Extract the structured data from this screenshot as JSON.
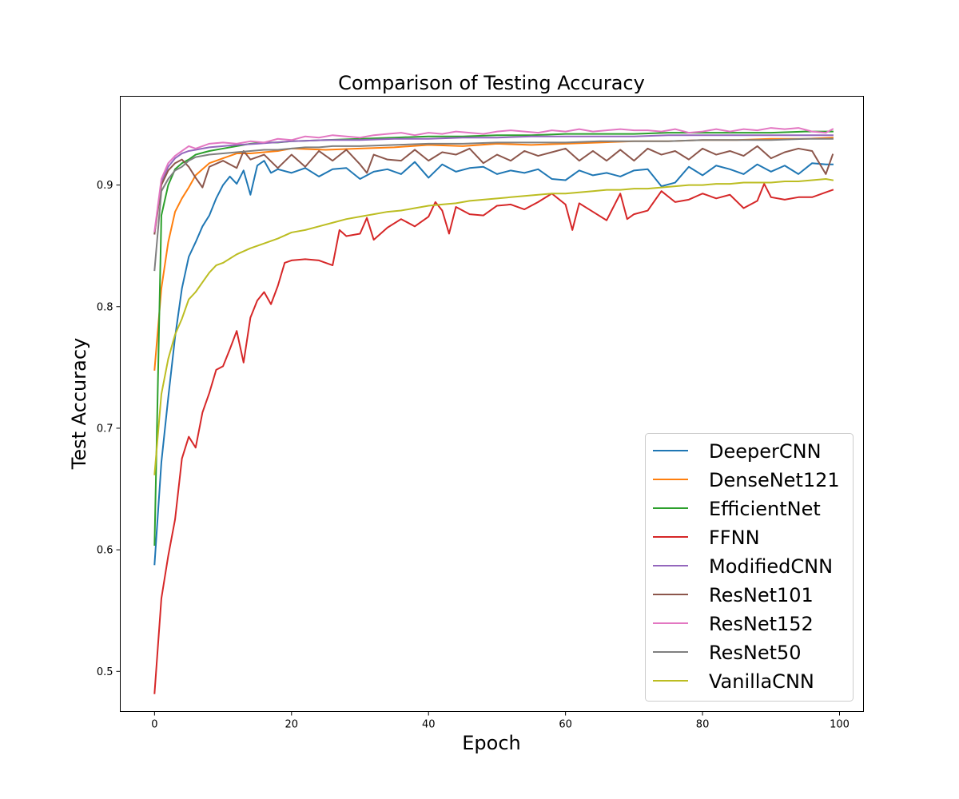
{
  "chart_data": {
    "type": "line",
    "title": "Comparison of Testing Accuracy",
    "xlabel": "Epoch",
    "ylabel": "Test Accuracy",
    "xlim": [
      -5,
      103.5
    ],
    "ylim": [
      0.467,
      0.973
    ],
    "xticks": [
      0,
      20,
      40,
      60,
      80,
      100
    ],
    "yticks": [
      0.5,
      0.6,
      0.7,
      0.8,
      0.9
    ],
    "grid": false,
    "legend_position": "lower-right",
    "series": [
      {
        "name": "DeeperCNN",
        "color": "#1f77b4",
        "x": [
          0,
          1,
          2,
          3,
          4,
          5,
          6,
          7,
          8,
          9,
          10,
          11,
          12,
          13,
          14,
          15,
          16,
          17,
          18,
          20,
          22,
          24,
          26,
          28,
          30,
          32,
          34,
          36,
          38,
          40,
          42,
          44,
          46,
          48,
          50,
          52,
          54,
          56,
          58,
          60,
          62,
          64,
          66,
          68,
          70,
          72,
          74,
          76,
          78,
          80,
          82,
          84,
          86,
          88,
          90,
          92,
          94,
          96,
          98,
          99
        ],
        "values": [
          0.588,
          0.672,
          0.725,
          0.775,
          0.815,
          0.841,
          0.853,
          0.866,
          0.875,
          0.889,
          0.9,
          0.907,
          0.901,
          0.912,
          0.892,
          0.916,
          0.92,
          0.91,
          0.913,
          0.91,
          0.914,
          0.907,
          0.913,
          0.914,
          0.905,
          0.911,
          0.913,
          0.909,
          0.919,
          0.906,
          0.917,
          0.911,
          0.914,
          0.915,
          0.909,
          0.912,
          0.91,
          0.913,
          0.905,
          0.904,
          0.912,
          0.908,
          0.91,
          0.907,
          0.912,
          0.913,
          0.899,
          0.902,
          0.915,
          0.908,
          0.916,
          0.913,
          0.909,
          0.917,
          0.911,
          0.916,
          0.909,
          0.918,
          0.917,
          0.917
        ]
      },
      {
        "name": "DenseNet121",
        "color": "#ff7f0e",
        "x": [
          0,
          1,
          2,
          3,
          4,
          5,
          6,
          7,
          8,
          9,
          10,
          12,
          14,
          16,
          18,
          20,
          25,
          30,
          35,
          40,
          45,
          50,
          55,
          60,
          65,
          70,
          75,
          80,
          85,
          90,
          95,
          99
        ],
        "values": [
          0.748,
          0.815,
          0.853,
          0.878,
          0.889,
          0.898,
          0.908,
          0.913,
          0.918,
          0.92,
          0.922,
          0.926,
          0.926,
          0.927,
          0.928,
          0.93,
          0.929,
          0.93,
          0.931,
          0.933,
          0.932,
          0.934,
          0.933,
          0.934,
          0.935,
          0.936,
          0.936,
          0.937,
          0.937,
          0.938,
          0.938,
          0.939
        ]
      },
      {
        "name": "EfficientNet",
        "color": "#2ca02c",
        "x": [
          0,
          1,
          2,
          3,
          4,
          5,
          6,
          8,
          10,
          12,
          14,
          16,
          18,
          20,
          25,
          30,
          35,
          40,
          45,
          50,
          55,
          60,
          65,
          70,
          75,
          80,
          85,
          90,
          95,
          99
        ],
        "values": [
          0.604,
          0.875,
          0.9,
          0.913,
          0.918,
          0.921,
          0.925,
          0.928,
          0.93,
          0.932,
          0.934,
          0.935,
          0.935,
          0.936,
          0.937,
          0.938,
          0.939,
          0.94,
          0.94,
          0.941,
          0.941,
          0.942,
          0.942,
          0.942,
          0.943,
          0.943,
          0.943,
          0.943,
          0.944,
          0.944
        ]
      },
      {
        "name": "FFNN",
        "color": "#d62728",
        "x": [
          0,
          1,
          2,
          3,
          4,
          5,
          6,
          7,
          8,
          9,
          10,
          11,
          12,
          13,
          14,
          15,
          16,
          17,
          18,
          19,
          20,
          22,
          24,
          26,
          27,
          28,
          30,
          31,
          32,
          34,
          36,
          38,
          40,
          41,
          42,
          43,
          44,
          46,
          48,
          50,
          52,
          54,
          56,
          58,
          60,
          61,
          62,
          64,
          66,
          68,
          69,
          70,
          72,
          74,
          76,
          78,
          80,
          82,
          84,
          86,
          88,
          89,
          90,
          92,
          94,
          96,
          98,
          99
        ],
        "values": [
          0.482,
          0.56,
          0.595,
          0.625,
          0.675,
          0.693,
          0.684,
          0.713,
          0.729,
          0.748,
          0.751,
          0.765,
          0.78,
          0.754,
          0.791,
          0.805,
          0.812,
          0.802,
          0.817,
          0.836,
          0.838,
          0.839,
          0.838,
          0.834,
          0.863,
          0.858,
          0.86,
          0.873,
          0.855,
          0.865,
          0.872,
          0.866,
          0.874,
          0.886,
          0.879,
          0.86,
          0.882,
          0.876,
          0.875,
          0.883,
          0.884,
          0.88,
          0.886,
          0.893,
          0.884,
          0.863,
          0.885,
          0.878,
          0.871,
          0.893,
          0.872,
          0.876,
          0.879,
          0.895,
          0.886,
          0.888,
          0.893,
          0.889,
          0.892,
          0.881,
          0.887,
          0.901,
          0.89,
          0.888,
          0.89,
          0.89,
          0.894,
          0.896
        ]
      },
      {
        "name": "ModifiedCNN",
        "color": "#9467bd",
        "x": [
          0,
          1,
          2,
          3,
          4,
          5,
          6,
          8,
          10,
          12,
          15,
          20,
          25,
          30,
          35,
          40,
          45,
          50,
          55,
          60,
          65,
          70,
          75,
          80,
          85,
          90,
          95,
          99
        ],
        "values": [
          0.86,
          0.903,
          0.915,
          0.922,
          0.926,
          0.928,
          0.929,
          0.931,
          0.932,
          0.933,
          0.934,
          0.936,
          0.937,
          0.937,
          0.938,
          0.938,
          0.939,
          0.939,
          0.94,
          0.94,
          0.94,
          0.94,
          0.941,
          0.941,
          0.941,
          0.941,
          0.941,
          0.941
        ]
      },
      {
        "name": "ResNet101",
        "color": "#8c564b",
        "x": [
          0,
          1,
          2,
          3,
          4,
          5,
          6,
          7,
          8,
          10,
          12,
          13,
          14,
          16,
          18,
          20,
          22,
          24,
          26,
          28,
          30,
          31,
          32,
          34,
          36,
          38,
          40,
          42,
          44,
          46,
          48,
          50,
          52,
          54,
          56,
          58,
          60,
          62,
          64,
          66,
          68,
          70,
          72,
          74,
          76,
          78,
          80,
          82,
          84,
          86,
          88,
          90,
          92,
          94,
          96,
          98,
          99
        ],
        "values": [
          0.86,
          0.9,
          0.912,
          0.918,
          0.921,
          0.915,
          0.906,
          0.898,
          0.915,
          0.92,
          0.914,
          0.928,
          0.921,
          0.925,
          0.914,
          0.925,
          0.915,
          0.928,
          0.92,
          0.929,
          0.917,
          0.91,
          0.925,
          0.921,
          0.92,
          0.929,
          0.92,
          0.927,
          0.925,
          0.93,
          0.918,
          0.925,
          0.92,
          0.928,
          0.924,
          0.927,
          0.93,
          0.92,
          0.928,
          0.92,
          0.929,
          0.92,
          0.93,
          0.925,
          0.928,
          0.921,
          0.93,
          0.925,
          0.928,
          0.924,
          0.932,
          0.922,
          0.927,
          0.93,
          0.928,
          0.909,
          0.925
        ]
      },
      {
        "name": "ResNet152",
        "color": "#e377c2",
        "x": [
          0,
          1,
          2,
          3,
          4,
          5,
          6,
          8,
          10,
          12,
          14,
          16,
          18,
          20,
          22,
          24,
          26,
          28,
          30,
          32,
          34,
          36,
          38,
          40,
          42,
          44,
          46,
          48,
          50,
          52,
          54,
          56,
          58,
          60,
          62,
          64,
          66,
          68,
          70,
          72,
          74,
          76,
          78,
          80,
          82,
          84,
          86,
          88,
          90,
          92,
          94,
          96,
          98,
          99
        ],
        "values": [
          0.862,
          0.905,
          0.918,
          0.924,
          0.928,
          0.932,
          0.93,
          0.934,
          0.935,
          0.934,
          0.936,
          0.935,
          0.938,
          0.937,
          0.94,
          0.939,
          0.941,
          0.94,
          0.939,
          0.941,
          0.942,
          0.943,
          0.941,
          0.943,
          0.942,
          0.944,
          0.943,
          0.942,
          0.944,
          0.945,
          0.944,
          0.943,
          0.945,
          0.944,
          0.946,
          0.944,
          0.945,
          0.946,
          0.945,
          0.945,
          0.944,
          0.946,
          0.943,
          0.944,
          0.946,
          0.944,
          0.946,
          0.945,
          0.947,
          0.946,
          0.947,
          0.944,
          0.943,
          0.946
        ]
      },
      {
        "name": "ResNet50",
        "color": "#7f7f7f",
        "x": [
          0,
          1,
          2,
          3,
          4,
          5,
          6,
          8,
          10,
          12,
          14,
          16,
          18,
          20,
          22,
          24,
          26,
          28,
          30,
          35,
          40,
          45,
          50,
          55,
          60,
          65,
          70,
          75,
          80,
          85,
          90,
          95,
          99
        ],
        "values": [
          0.83,
          0.895,
          0.905,
          0.912,
          0.915,
          0.92,
          0.923,
          0.925,
          0.926,
          0.927,
          0.928,
          0.929,
          0.929,
          0.93,
          0.931,
          0.931,
          0.932,
          0.932,
          0.932,
          0.933,
          0.934,
          0.934,
          0.935,
          0.935,
          0.935,
          0.936,
          0.936,
          0.936,
          0.937,
          0.937,
          0.937,
          0.938,
          0.938
        ]
      },
      {
        "name": "VanillaCNN",
        "color": "#bcbd22",
        "x": [
          0,
          1,
          2,
          3,
          4,
          5,
          6,
          7,
          8,
          9,
          10,
          12,
          14,
          16,
          18,
          20,
          22,
          24,
          26,
          28,
          30,
          32,
          34,
          36,
          38,
          40,
          42,
          44,
          46,
          48,
          50,
          52,
          54,
          56,
          58,
          60,
          62,
          64,
          66,
          68,
          70,
          72,
          74,
          76,
          78,
          80,
          82,
          84,
          86,
          88,
          90,
          92,
          94,
          96,
          98,
          99
        ],
        "values": [
          0.662,
          0.728,
          0.757,
          0.777,
          0.79,
          0.806,
          0.812,
          0.82,
          0.828,
          0.834,
          0.836,
          0.843,
          0.848,
          0.852,
          0.856,
          0.861,
          0.863,
          0.866,
          0.869,
          0.872,
          0.874,
          0.876,
          0.878,
          0.879,
          0.881,
          0.883,
          0.884,
          0.885,
          0.887,
          0.888,
          0.889,
          0.89,
          0.891,
          0.892,
          0.893,
          0.893,
          0.894,
          0.895,
          0.896,
          0.896,
          0.897,
          0.897,
          0.898,
          0.899,
          0.9,
          0.9,
          0.901,
          0.901,
          0.902,
          0.902,
          0.902,
          0.903,
          0.903,
          0.904,
          0.905,
          0.904
        ]
      }
    ]
  }
}
